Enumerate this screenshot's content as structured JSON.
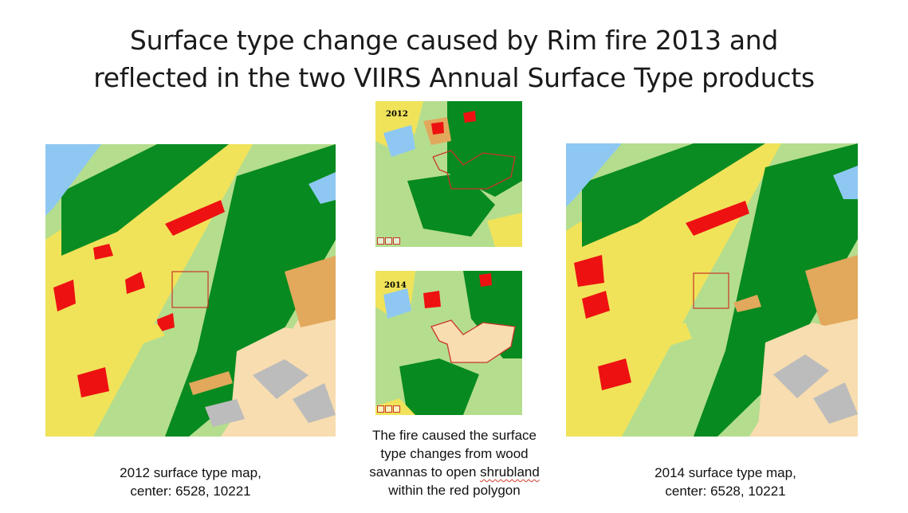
{
  "title": {
    "line1": "Surface type change caused by Rim fire 2013 and",
    "line2": "reflected in the two VIIRS Annual Surface Type products"
  },
  "inset_2012": {
    "year": "2012"
  },
  "inset_2014": {
    "year": "2014"
  },
  "left_caption": {
    "line1": "2012 surface type map,",
    "line2": "center: 6528, 10221"
  },
  "right_caption": {
    "line1": "2014 surface type map,",
    "line2": "center: 6528, 10221"
  },
  "center_caption": {
    "line1": "The fire caused the surface",
    "line2": "type changes from wood",
    "line3a": "savannas to open ",
    "line3b": "shrubland",
    "line4": "within the red polygon"
  },
  "colors": {
    "water": "#8ec8f2",
    "forest": "#078a1f",
    "woody_savanna": "#b5dd8e",
    "savanna": "#f0e35a",
    "grassland": "#d9d24c",
    "open_shrubland": "#f8ddb0",
    "cropland": "#e2a85c",
    "urban": "#ee1111",
    "barren": "#bcbcbc",
    "polygon": "#c8352a"
  }
}
